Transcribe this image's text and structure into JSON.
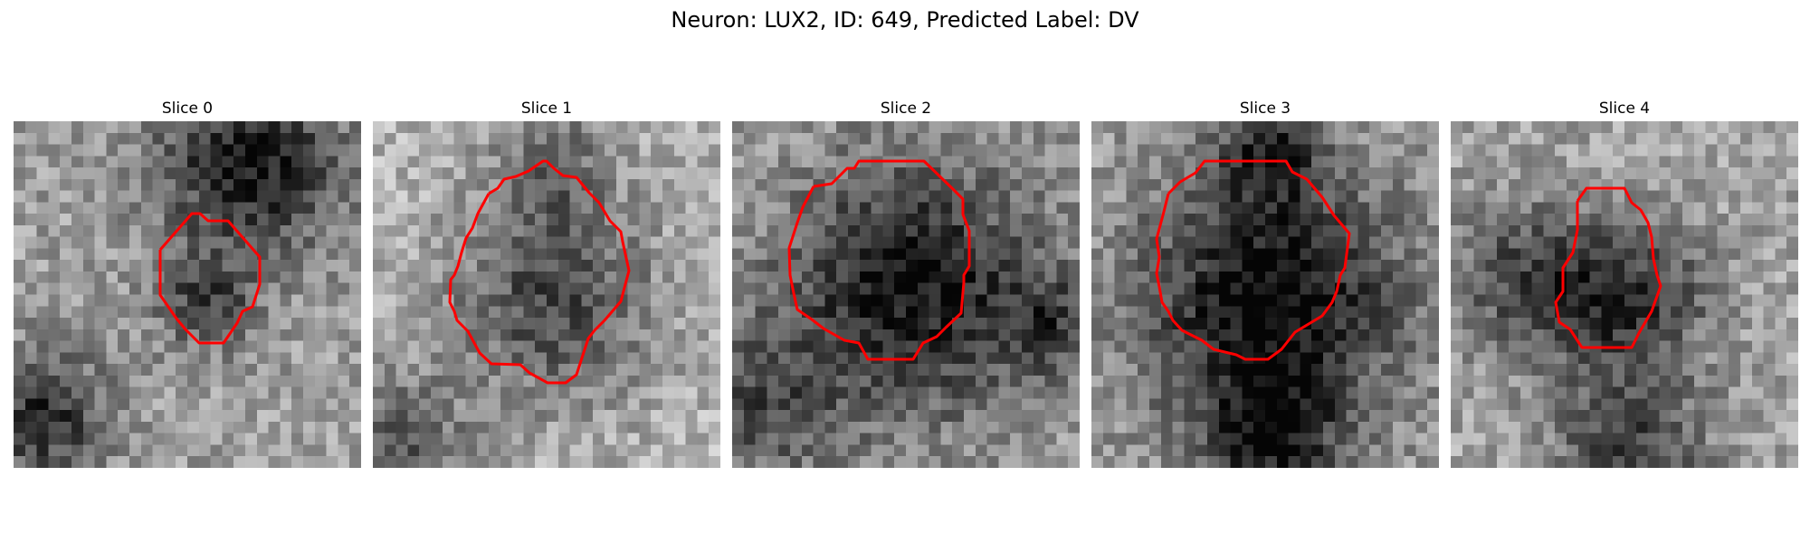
{
  "figure": {
    "title": "Neuron: LUX2, ID: 649, Predicted Label: DV"
  },
  "colors": {
    "contour": "#ff0000",
    "background": "#ffffff"
  },
  "slices": [
    {
      "title": "Slice 0"
    },
    {
      "title": "Slice 1"
    },
    {
      "title": "Slice 2"
    },
    {
      "title": "Slice 3"
    },
    {
      "title": "Slice 4"
    }
  ]
}
